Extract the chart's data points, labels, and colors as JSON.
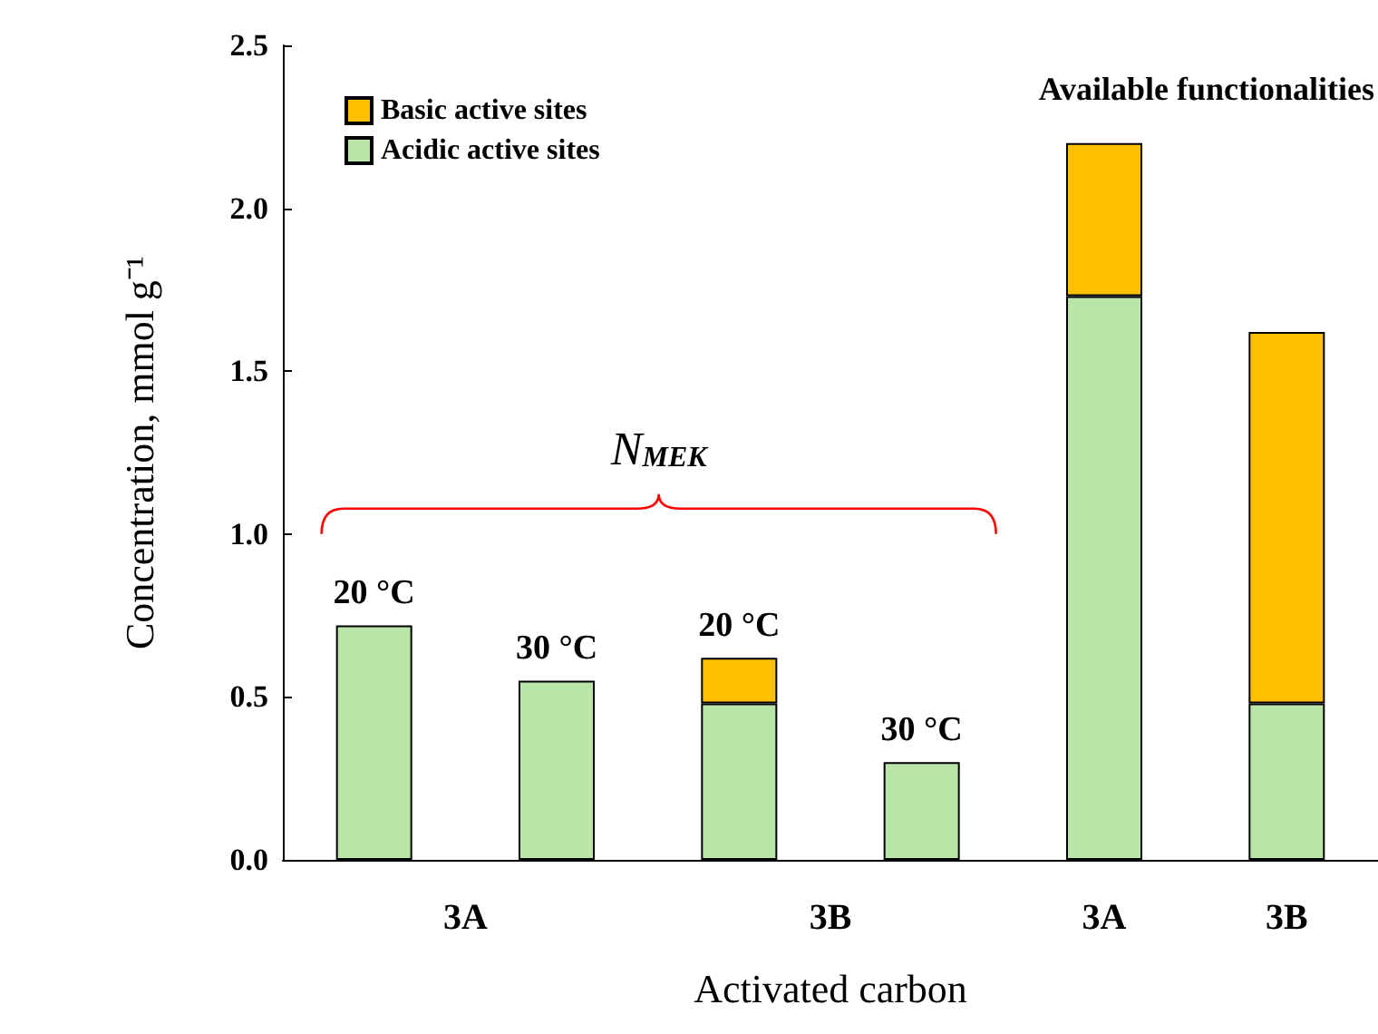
{
  "chart_data": {
    "type": "bar",
    "stacked": true,
    "xlabel": "Activated carbon",
    "ylabel": "Concentration, mmol g⁻¹",
    "categories": [
      null,
      null,
      null,
      null,
      "3A",
      "3B"
    ],
    "series": [
      {
        "name": "Acidic active sites",
        "color": "#b9e5a8",
        "values": [
          0.72,
          0.55,
          0.48,
          0.3,
          1.73,
          0.48
        ]
      },
      {
        "name": "Basic active sites",
        "color": "#ffc000",
        "values": [
          null,
          null,
          0.14,
          null,
          0.47,
          1.14
        ]
      }
    ],
    "ylim": [
      0,
      2.5
    ],
    "yticks": [
      {
        "value": 0,
        "label": "0.0"
      },
      {
        "value": 0.5,
        "label": "0.5"
      },
      {
        "value": 1,
        "label": "1.0"
      },
      {
        "value": 1.5,
        "label": "1.5"
      },
      {
        "value": 2,
        "label": "2.0"
      },
      {
        "value": 2.5,
        "label": "2.5"
      }
    ],
    "annotations": [
      "N$_{MEK}$",
      "20 °C",
      "30 °C",
      "20 °C",
      "30 °C",
      "3A",
      "3B",
      "Available functionalities"
    ],
    "legend": "top left",
    "grid": false
  }
}
